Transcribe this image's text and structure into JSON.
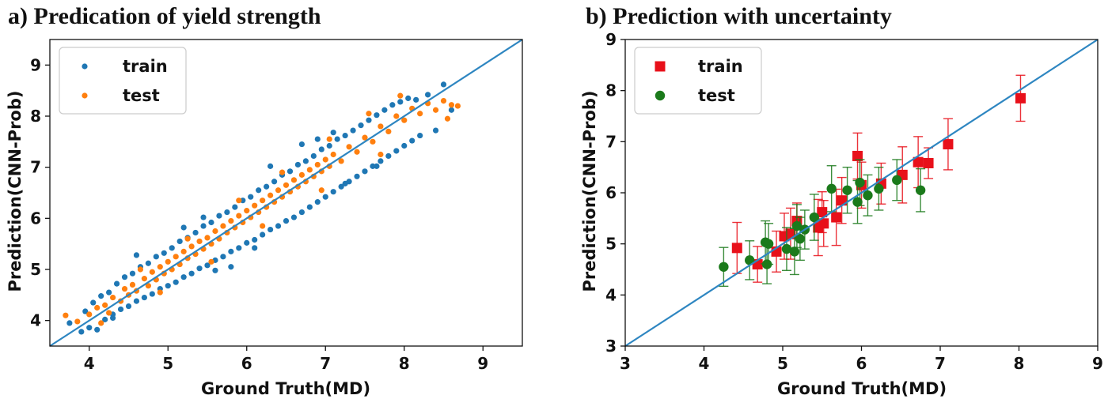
{
  "chart_data": [
    {
      "type": "scatter",
      "title": "a) Predication of yield strength",
      "xlabel": "Ground Truth(MD)",
      "ylabel": "Prediction(CNN-Prob)",
      "xlim": [
        3.5,
        9.5
      ],
      "ylim": [
        3.5,
        9.5
      ],
      "xticks": [
        4,
        5,
        6,
        7,
        8,
        9
      ],
      "yticks": [
        4,
        5,
        6,
        7,
        8,
        9
      ],
      "grid": false,
      "legend_position": "top-left",
      "diagonal": {
        "from": [
          3.5,
          3.5
        ],
        "to": [
          9.5,
          9.5
        ],
        "color": "#2e86c1"
      },
      "series": [
        {
          "name": "train",
          "color": "#1f77b4",
          "marker": "circle",
          "points": [
            [
              3.75,
              3.95
            ],
            [
              3.9,
              3.78
            ],
            [
              3.95,
              4.18
            ],
            [
              4.0,
              3.86
            ],
            [
              4.05,
              4.35
            ],
            [
              4.1,
              3.82
            ],
            [
              4.15,
              4.48
            ],
            [
              4.2,
              4.02
            ],
            [
              4.25,
              4.55
            ],
            [
              4.3,
              4.12
            ],
            [
              4.35,
              4.72
            ],
            [
              4.4,
              4.22
            ],
            [
              4.45,
              4.85
            ],
            [
              4.5,
              4.28
            ],
            [
              4.55,
              4.92
            ],
            [
              4.6,
              4.38
            ],
            [
              4.65,
              5.05
            ],
            [
              4.7,
              4.45
            ],
            [
              4.75,
              5.12
            ],
            [
              4.8,
              4.52
            ],
            [
              4.85,
              5.25
            ],
            [
              4.9,
              4.62
            ],
            [
              4.95,
              5.32
            ],
            [
              5.0,
              4.68
            ],
            [
              5.05,
              5.42
            ],
            [
              5.1,
              4.75
            ],
            [
              5.15,
              5.55
            ],
            [
              5.2,
              4.85
            ],
            [
              5.25,
              5.62
            ],
            [
              5.3,
              4.92
            ],
            [
              5.35,
              5.72
            ],
            [
              5.4,
              5.02
            ],
            [
              5.45,
              5.85
            ],
            [
              5.5,
              5.08
            ],
            [
              5.55,
              5.92
            ],
            [
              5.6,
              5.18
            ],
            [
              5.65,
              6.05
            ],
            [
              5.7,
              5.25
            ],
            [
              5.75,
              6.12
            ],
            [
              5.8,
              5.35
            ],
            [
              5.85,
              6.22
            ],
            [
              5.9,
              5.42
            ],
            [
              5.95,
              6.35
            ],
            [
              6.0,
              5.52
            ],
            [
              6.05,
              6.42
            ],
            [
              6.1,
              5.58
            ],
            [
              6.15,
              6.55
            ],
            [
              6.2,
              5.68
            ],
            [
              6.25,
              6.62
            ],
            [
              6.3,
              5.78
            ],
            [
              6.35,
              6.72
            ],
            [
              6.4,
              5.85
            ],
            [
              6.45,
              6.85
            ],
            [
              6.5,
              5.95
            ],
            [
              6.55,
              6.92
            ],
            [
              6.6,
              6.02
            ],
            [
              6.65,
              7.05
            ],
            [
              6.7,
              6.12
            ],
            [
              6.75,
              7.12
            ],
            [
              6.8,
              6.22
            ],
            [
              6.85,
              7.22
            ],
            [
              6.9,
              6.32
            ],
            [
              6.95,
              7.35
            ],
            [
              7.0,
              6.42
            ],
            [
              7.05,
              7.42
            ],
            [
              7.1,
              6.52
            ],
            [
              7.15,
              7.55
            ],
            [
              7.2,
              6.62
            ],
            [
              7.25,
              7.62
            ],
            [
              7.3,
              6.72
            ],
            [
              7.35,
              7.72
            ],
            [
              7.4,
              6.82
            ],
            [
              7.45,
              7.82
            ],
            [
              7.5,
              6.92
            ],
            [
              7.55,
              7.92
            ],
            [
              7.6,
              7.02
            ],
            [
              7.65,
              8.02
            ],
            [
              7.7,
              7.12
            ],
            [
              7.75,
              8.12
            ],
            [
              7.8,
              7.22
            ],
            [
              7.85,
              8.22
            ],
            [
              7.9,
              7.32
            ],
            [
              7.95,
              8.28
            ],
            [
              8.0,
              7.42
            ],
            [
              8.05,
              8.35
            ],
            [
              8.1,
              7.52
            ],
            [
              8.15,
              8.32
            ],
            [
              8.2,
              7.62
            ],
            [
              8.3,
              8.42
            ],
            [
              8.4,
              7.72
            ],
            [
              8.5,
              8.62
            ],
            [
              8.6,
              8.12
            ],
            [
              6.7,
              7.45
            ],
            [
              7.1,
              7.68
            ],
            [
              6.3,
              7.02
            ],
            [
              5.2,
              5.82
            ],
            [
              4.6,
              5.28
            ],
            [
              5.8,
              5.05
            ],
            [
              6.1,
              5.42
            ],
            [
              7.25,
              6.68
            ],
            [
              5.6,
              4.98
            ],
            [
              4.3,
              4.05
            ],
            [
              6.9,
              7.55
            ],
            [
              7.65,
              7.02
            ],
            [
              5.45,
              6.02
            ]
          ]
        },
        {
          "name": "test",
          "color": "#ff7f0e",
          "marker": "circle",
          "points": [
            [
              3.7,
              4.1
            ],
            [
              3.85,
              3.98
            ],
            [
              4.0,
              4.12
            ],
            [
              4.1,
              4.25
            ],
            [
              4.2,
              4.3
            ],
            [
              4.25,
              4.15
            ],
            [
              4.3,
              4.45
            ],
            [
              4.4,
              4.38
            ],
            [
              4.45,
              4.62
            ],
            [
              4.5,
              4.5
            ],
            [
              4.55,
              4.7
            ],
            [
              4.6,
              4.58
            ],
            [
              4.7,
              4.82
            ],
            [
              4.75,
              4.68
            ],
            [
              4.8,
              4.95
            ],
            [
              4.85,
              4.8
            ],
            [
              4.9,
              5.05
            ],
            [
              4.95,
              4.92
            ],
            [
              5.0,
              5.15
            ],
            [
              5.05,
              5.0
            ],
            [
              5.1,
              5.25
            ],
            [
              5.15,
              5.1
            ],
            [
              5.2,
              5.35
            ],
            [
              5.25,
              5.22
            ],
            [
              5.3,
              5.45
            ],
            [
              5.35,
              5.3
            ],
            [
              5.4,
              5.55
            ],
            [
              5.45,
              5.4
            ],
            [
              5.5,
              5.62
            ],
            [
              5.55,
              5.5
            ],
            [
              5.6,
              5.75
            ],
            [
              5.65,
              5.6
            ],
            [
              5.7,
              5.85
            ],
            [
              5.75,
              5.72
            ],
            [
              5.8,
              5.95
            ],
            [
              5.85,
              5.82
            ],
            [
              5.9,
              6.05
            ],
            [
              5.95,
              5.92
            ],
            [
              6.0,
              6.15
            ],
            [
              6.05,
              6.02
            ],
            [
              6.1,
              6.25
            ],
            [
              6.15,
              6.12
            ],
            [
              6.2,
              6.35
            ],
            [
              6.25,
              6.22
            ],
            [
              6.3,
              6.45
            ],
            [
              6.35,
              6.32
            ],
            [
              6.4,
              6.55
            ],
            [
              6.45,
              6.42
            ],
            [
              6.5,
              6.65
            ],
            [
              6.55,
              6.52
            ],
            [
              6.6,
              6.75
            ],
            [
              6.65,
              6.62
            ],
            [
              6.7,
              6.85
            ],
            [
              6.75,
              6.72
            ],
            [
              6.8,
              6.95
            ],
            [
              6.85,
              6.82
            ],
            [
              6.9,
              7.05
            ],
            [
              6.95,
              6.92
            ],
            [
              7.0,
              7.15
            ],
            [
              7.05,
              7.02
            ],
            [
              7.1,
              7.25
            ],
            [
              7.2,
              7.12
            ],
            [
              7.3,
              7.4
            ],
            [
              7.4,
              7.3
            ],
            [
              7.5,
              7.58
            ],
            [
              7.6,
              7.5
            ],
            [
              7.7,
              7.8
            ],
            [
              7.8,
              7.7
            ],
            [
              7.9,
              8.0
            ],
            [
              8.0,
              7.92
            ],
            [
              8.1,
              8.15
            ],
            [
              8.2,
              8.05
            ],
            [
              8.3,
              8.25
            ],
            [
              8.4,
              8.12
            ],
            [
              8.5,
              8.3
            ],
            [
              8.6,
              8.22
            ],
            [
              8.68,
              8.2
            ],
            [
              4.65,
              5.0
            ],
            [
              5.25,
              5.6
            ],
            [
              5.9,
              6.35
            ],
            [
              6.45,
              6.9
            ],
            [
              7.05,
              7.55
            ],
            [
              7.55,
              8.05
            ],
            [
              7.95,
              8.4
            ],
            [
              8.55,
              7.95
            ],
            [
              7.7,
              7.25
            ],
            [
              6.95,
              6.55
            ],
            [
              6.2,
              5.85
            ],
            [
              5.55,
              5.15
            ],
            [
              4.9,
              4.55
            ],
            [
              4.15,
              3.95
            ]
          ]
        }
      ]
    },
    {
      "type": "scatter",
      "title": "b) Prediction with uncertainty",
      "xlabel": "Ground Truth(MD)",
      "ylabel": "Prediction(CNN-Prob)",
      "xlim": [
        3,
        9
      ],
      "ylim": [
        3,
        9
      ],
      "xticks": [
        3,
        4,
        5,
        6,
        7,
        8,
        9
      ],
      "yticks": [
        3,
        4,
        5,
        6,
        7,
        8,
        9
      ],
      "grid": false,
      "legend_position": "top-left",
      "diagonal": {
        "from": [
          3,
          3
        ],
        "to": [
          9,
          9
        ],
        "color": "#2e86c1"
      },
      "series": [
        {
          "name": "train",
          "color": "#e8101a",
          "marker": "square",
          "points": [
            {
              "x": 4.42,
              "y": 4.92,
              "err": 0.5
            },
            {
              "x": 4.68,
              "y": 4.6,
              "err": 0.35
            },
            {
              "x": 4.92,
              "y": 4.85,
              "err": 0.4
            },
            {
              "x": 5.02,
              "y": 5.15,
              "err": 0.45
            },
            {
              "x": 5.1,
              "y": 5.2,
              "err": 0.5
            },
            {
              "x": 5.18,
              "y": 5.45,
              "err": 0.35
            },
            {
              "x": 5.45,
              "y": 5.32,
              "err": 0.55
            },
            {
              "x": 5.5,
              "y": 5.62,
              "err": 0.4
            },
            {
              "x": 5.52,
              "y": 5.4,
              "err": 0.45
            },
            {
              "x": 5.68,
              "y": 5.52,
              "err": 0.55
            },
            {
              "x": 5.75,
              "y": 5.85,
              "err": 0.45
            },
            {
              "x": 5.95,
              "y": 6.72,
              "err": 0.45
            },
            {
              "x": 6.0,
              "y": 6.15,
              "err": 0.45
            },
            {
              "x": 6.25,
              "y": 6.18,
              "err": 0.4
            },
            {
              "x": 6.52,
              "y": 6.35,
              "err": 0.55
            },
            {
              "x": 6.72,
              "y": 6.6,
              "err": 0.5
            },
            {
              "x": 6.85,
              "y": 6.58,
              "err": 0.3
            },
            {
              "x": 7.1,
              "y": 6.95,
              "err": 0.5
            },
            {
              "x": 8.02,
              "y": 7.85,
              "err": 0.45
            }
          ]
        },
        {
          "name": "test",
          "color": "#1b7a1b",
          "marker": "circle",
          "points": [
            {
              "x": 4.25,
              "y": 4.55,
              "err": 0.38
            },
            {
              "x": 4.58,
              "y": 4.68,
              "err": 0.38
            },
            {
              "x": 4.78,
              "y": 5.03,
              "err": 0.42
            },
            {
              "x": 4.82,
              "y": 5.0,
              "err": 0.4
            },
            {
              "x": 4.8,
              "y": 4.6,
              "err": 0.38
            },
            {
              "x": 5.05,
              "y": 4.9,
              "err": 0.42
            },
            {
              "x": 5.15,
              "y": 4.85,
              "err": 0.45
            },
            {
              "x": 5.18,
              "y": 5.35,
              "err": 0.42
            },
            {
              "x": 5.22,
              "y": 5.1,
              "err": 0.42
            },
            {
              "x": 5.28,
              "y": 5.28,
              "err": 0.38
            },
            {
              "x": 5.4,
              "y": 5.52,
              "err": 0.45
            },
            {
              "x": 5.62,
              "y": 6.08,
              "err": 0.45
            },
            {
              "x": 5.82,
              "y": 6.05,
              "err": 0.45
            },
            {
              "x": 5.95,
              "y": 5.82,
              "err": 0.42
            },
            {
              "x": 5.98,
              "y": 6.2,
              "err": 0.45
            },
            {
              "x": 6.08,
              "y": 5.95,
              "err": 0.4
            },
            {
              "x": 6.22,
              "y": 6.08,
              "err": 0.42
            },
            {
              "x": 6.45,
              "y": 6.25,
              "err": 0.4
            },
            {
              "x": 6.75,
              "y": 6.05,
              "err": 0.42
            }
          ]
        }
      ]
    }
  ]
}
